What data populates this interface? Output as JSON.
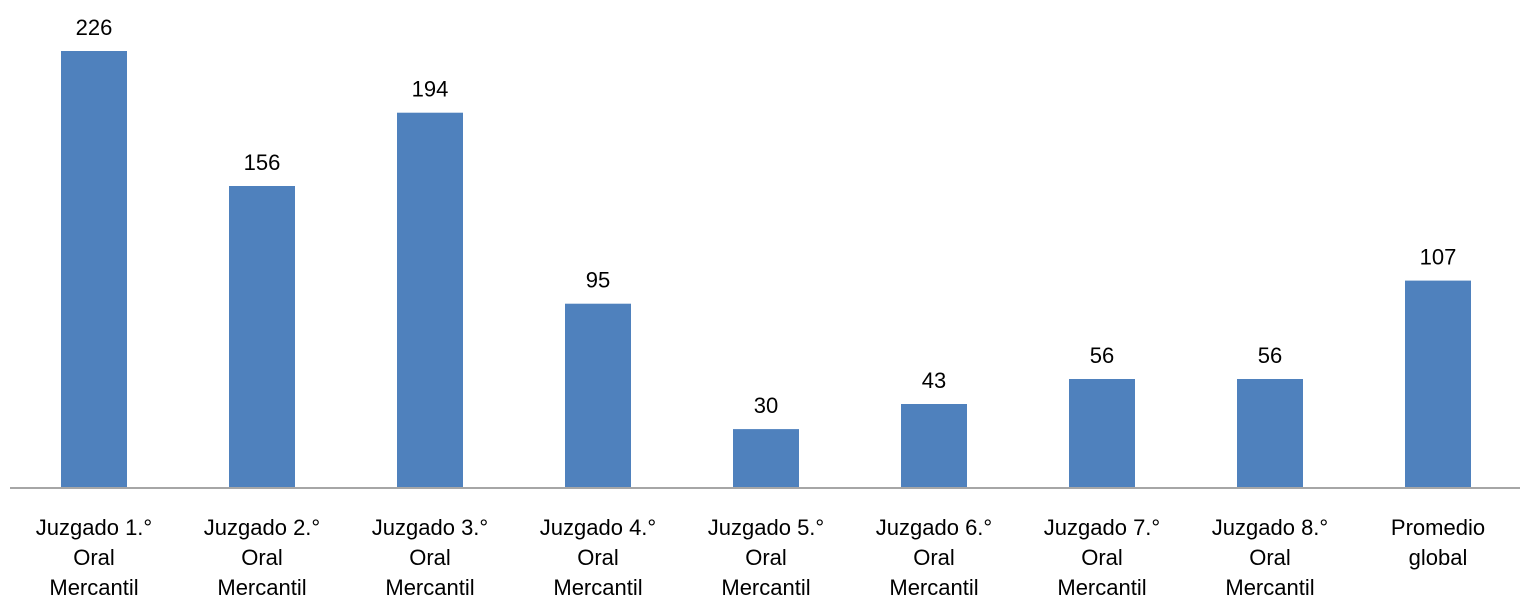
{
  "chart_data": {
    "type": "bar",
    "categories": [
      [
        "Juzgado 1.°",
        "Oral",
        "Mercantil"
      ],
      [
        "Juzgado 2.°",
        "Oral",
        "Mercantil"
      ],
      [
        "Juzgado 3.°",
        "Oral",
        "Mercantil"
      ],
      [
        "Juzgado 4.°",
        "Oral",
        "Mercantil"
      ],
      [
        "Juzgado 5.°",
        "Oral",
        "Mercantil"
      ],
      [
        "Juzgado 6.°",
        "Oral",
        "Mercantil"
      ],
      [
        "Juzgado 7.°",
        "Oral",
        "Mercantil"
      ],
      [
        "Juzgado 8.°",
        "Oral",
        "Mercantil"
      ],
      [
        "Promedio",
        "global"
      ]
    ],
    "values": [
      226,
      156,
      194,
      95,
      30,
      43,
      56,
      56,
      107
    ],
    "data_labels": [
      "226",
      "156",
      "194",
      "95",
      "30",
      "43",
      "56",
      "56",
      "107"
    ],
    "ylim": [
      0,
      226
    ],
    "grid": false,
    "legend": "none",
    "colors": {
      "bar": "#4f81bd",
      "axis": "#a6a6a6",
      "text": "#000000"
    }
  }
}
